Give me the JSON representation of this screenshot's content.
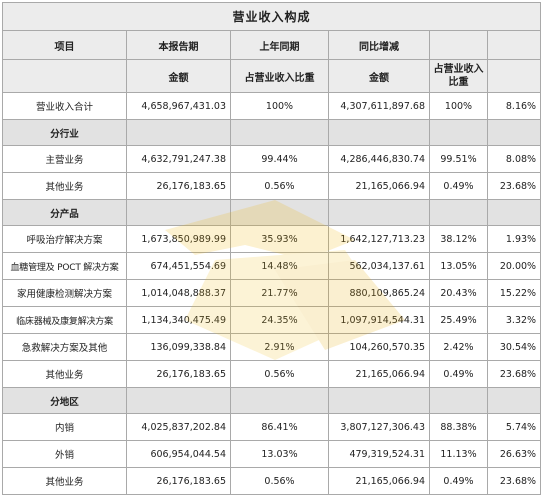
{
  "title": "营业收入构成",
  "header": {
    "item": "项目",
    "current": "本报告期",
    "prior": "上年同期",
    "yoy": "同比增减",
    "amount": "金额",
    "share": "占营业收入比重"
  },
  "rows": {
    "total": {
      "label": "营业收入合计",
      "cur_amt": "4,658,967,431.03",
      "cur_pct": "100%",
      "pri_amt": "4,307,611,897.68",
      "pri_pct": "100%",
      "yoy": "8.16%"
    },
    "sec_industry": "分行业",
    "main_biz": {
      "label": "主营业务",
      "cur_amt": "4,632,791,247.38",
      "cur_pct": "99.44%",
      "pri_amt": "4,286,446,830.74",
      "pri_pct": "99.51%",
      "yoy": "8.08%"
    },
    "other_biz": {
      "label": "其他业务",
      "cur_amt": "26,176,183.65",
      "cur_pct": "0.56%",
      "pri_amt": "21,165,066.94",
      "pri_pct": "0.49%",
      "yoy": "23.68%"
    },
    "sec_product": "分产品",
    "resp": {
      "label": "呼吸治疗解决方案",
      "cur_amt": "1,673,850,989.99",
      "cur_pct": "35.93%",
      "pri_amt": "1,642,127,713.23",
      "pri_pct": "38.12%",
      "yoy": "1.93%"
    },
    "glucose": {
      "label": "血糖管理及 POCT 解决方案",
      "cur_amt": "674,451,554.69",
      "cur_pct": "14.48%",
      "pri_amt": "562,034,137.61",
      "pri_pct": "13.05%",
      "yoy": "20.00%"
    },
    "home": {
      "label": "家用健康检测解决方案",
      "cur_amt": "1,014,048,888.37",
      "cur_pct": "21.77%",
      "pri_amt": "880,109,865.24",
      "pri_pct": "20.43%",
      "yoy": "15.22%"
    },
    "clinical": {
      "label": "临床器械及康复解决方案",
      "cur_amt": "1,134,340,475.49",
      "cur_pct": "24.35%",
      "pri_amt": "1,097,914,544.31",
      "pri_pct": "25.49%",
      "yoy": "3.32%"
    },
    "emerg": {
      "label": "急救解决方案及其他",
      "cur_amt": "136,099,338.84",
      "cur_pct": "2.91%",
      "pri_amt": "104,260,570.35",
      "pri_pct": "2.42%",
      "yoy": "30.54%"
    },
    "other_prod": {
      "label": "其他业务",
      "cur_amt": "26,176,183.65",
      "cur_pct": "0.56%",
      "pri_amt": "21,165,066.94",
      "pri_pct": "0.49%",
      "yoy": "23.68%"
    },
    "sec_region": "分地区",
    "domestic": {
      "label": "内销",
      "cur_amt": "4,025,837,202.84",
      "cur_pct": "86.41%",
      "pri_amt": "3,807,127,306.43",
      "pri_pct": "88.38%",
      "yoy": "5.74%"
    },
    "export": {
      "label": "外销",
      "cur_amt": "606,954,044.54",
      "cur_pct": "13.03%",
      "pri_amt": "479,319,524.31",
      "pri_pct": "11.13%",
      "yoy": "26.63%"
    },
    "other_reg": {
      "label": "其他业务",
      "cur_amt": "26,176,183.65",
      "cur_pct": "0.56%",
      "pri_amt": "21,165,066.94",
      "pri_pct": "0.49%",
      "yoy": "23.68%"
    }
  }
}
